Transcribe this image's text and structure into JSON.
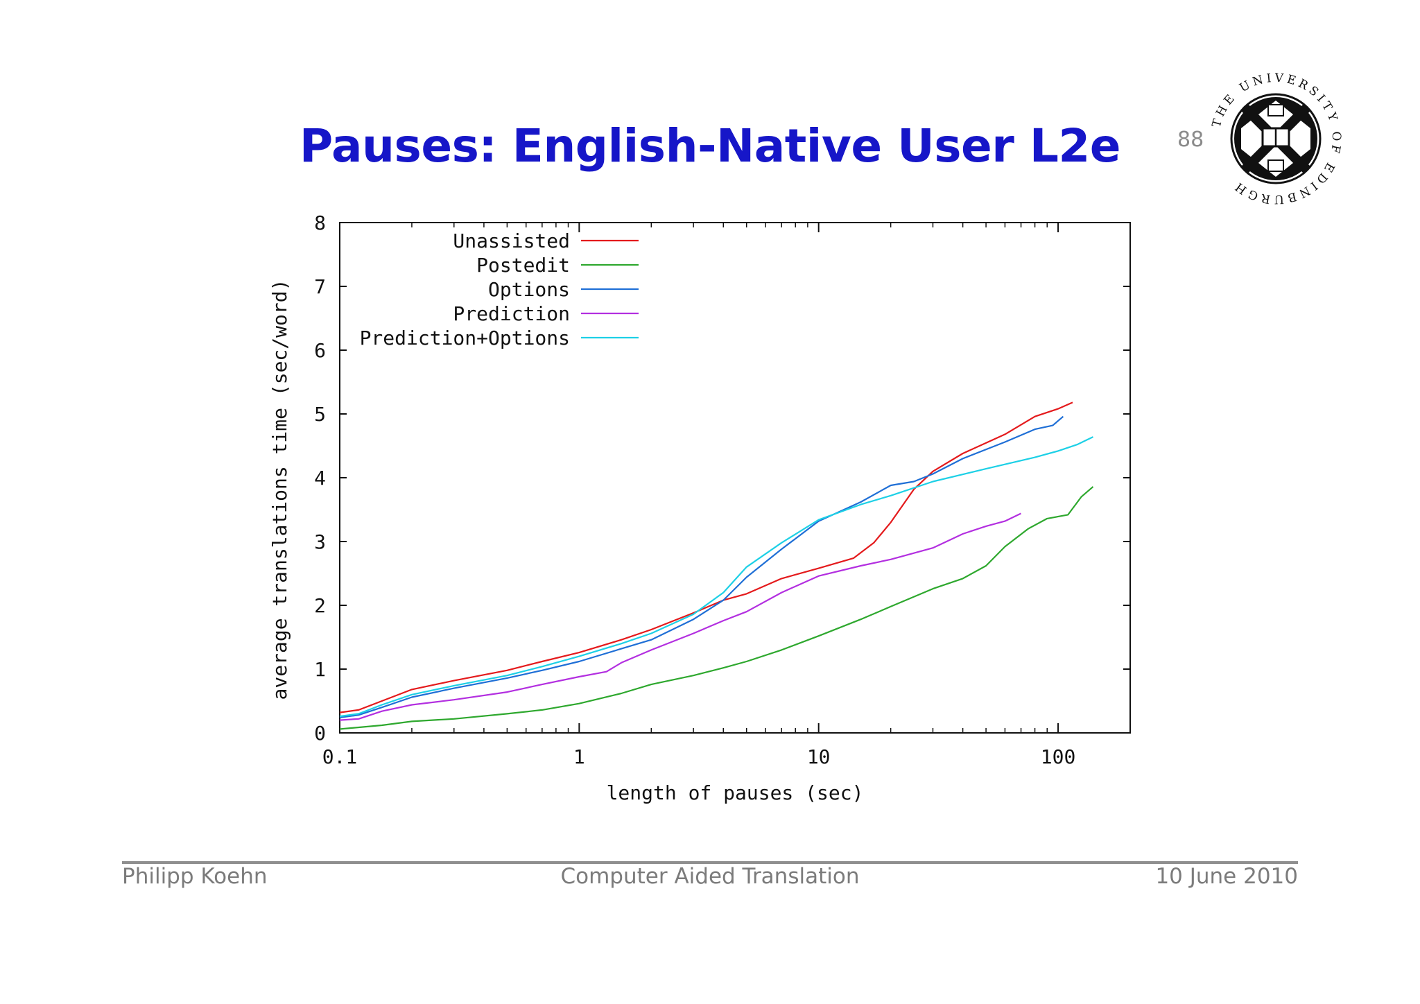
{
  "slide": {
    "title": "Pauses: English-Native User L2e",
    "page_number": "88",
    "logo_text": "THE UNIVERSITY OF EDINBURGH"
  },
  "footer": {
    "author": "Philipp Koehn",
    "course": "Computer Aided Translation",
    "date": "10 June 2010"
  },
  "chart_data": {
    "type": "line",
    "xlabel": "length of pauses (sec)",
    "ylabel": "average translations time (sec/word)",
    "x_scale": "log",
    "xlim": [
      0.1,
      200
    ],
    "ylim": [
      0,
      8
    ],
    "x_ticks": [
      0.1,
      1,
      10,
      100
    ],
    "x_tick_labels": [
      "0.1",
      "1",
      "10",
      "100"
    ],
    "y_ticks": [
      0,
      1,
      2,
      3,
      4,
      5,
      6,
      7,
      8
    ],
    "y_tick_labels": [
      "0",
      "1",
      "2",
      "3",
      "4",
      "5",
      "6",
      "7",
      "8"
    ],
    "grid": false,
    "legend_position": "top-left",
    "series": [
      {
        "name": "Unassisted",
        "color": "#e41a1c",
        "points": [
          [
            0.1,
            0.32
          ],
          [
            0.12,
            0.36
          ],
          [
            0.15,
            0.5
          ],
          [
            0.2,
            0.68
          ],
          [
            0.3,
            0.82
          ],
          [
            0.5,
            0.98
          ],
          [
            0.7,
            1.12
          ],
          [
            1.0,
            1.26
          ],
          [
            1.5,
            1.46
          ],
          [
            2.0,
            1.62
          ],
          [
            3.0,
            1.88
          ],
          [
            4.0,
            2.08
          ],
          [
            5.0,
            2.18
          ],
          [
            7.0,
            2.42
          ],
          [
            10.0,
            2.58
          ],
          [
            14.0,
            2.74
          ],
          [
            17.0,
            2.98
          ],
          [
            20.0,
            3.3
          ],
          [
            25.0,
            3.82
          ],
          [
            30.0,
            4.1
          ],
          [
            40.0,
            4.38
          ],
          [
            60.0,
            4.68
          ],
          [
            80.0,
            4.96
          ],
          [
            100.0,
            5.08
          ],
          [
            115.0,
            5.18
          ]
        ]
      },
      {
        "name": "Postedit",
        "color": "#2ea82e",
        "points": [
          [
            0.1,
            0.06
          ],
          [
            0.15,
            0.12
          ],
          [
            0.2,
            0.18
          ],
          [
            0.3,
            0.22
          ],
          [
            0.5,
            0.3
          ],
          [
            0.7,
            0.36
          ],
          [
            1.0,
            0.46
          ],
          [
            1.5,
            0.62
          ],
          [
            2.0,
            0.76
          ],
          [
            3.0,
            0.9
          ],
          [
            4.0,
            1.02
          ],
          [
            5.0,
            1.12
          ],
          [
            7.0,
            1.3
          ],
          [
            10.0,
            1.52
          ],
          [
            15.0,
            1.78
          ],
          [
            20.0,
            1.98
          ],
          [
            30.0,
            2.26
          ],
          [
            40.0,
            2.42
          ],
          [
            50.0,
            2.62
          ],
          [
            60.0,
            2.92
          ],
          [
            75.0,
            3.2
          ],
          [
            90.0,
            3.36
          ],
          [
            110.0,
            3.42
          ],
          [
            125.0,
            3.7
          ],
          [
            140.0,
            3.86
          ]
        ]
      },
      {
        "name": "Options",
        "color": "#1f6fd6",
        "points": [
          [
            0.1,
            0.24
          ],
          [
            0.12,
            0.28
          ],
          [
            0.15,
            0.4
          ],
          [
            0.2,
            0.56
          ],
          [
            0.3,
            0.7
          ],
          [
            0.5,
            0.86
          ],
          [
            0.7,
            0.98
          ],
          [
            1.0,
            1.12
          ],
          [
            1.5,
            1.32
          ],
          [
            2.0,
            1.46
          ],
          [
            3.0,
            1.78
          ],
          [
            4.0,
            2.08
          ],
          [
            5.0,
            2.44
          ],
          [
            7.0,
            2.88
          ],
          [
            10.0,
            3.32
          ],
          [
            15.0,
            3.62
          ],
          [
            20.0,
            3.88
          ],
          [
            25.0,
            3.94
          ],
          [
            30.0,
            4.06
          ],
          [
            40.0,
            4.3
          ],
          [
            60.0,
            4.56
          ],
          [
            80.0,
            4.76
          ],
          [
            95.0,
            4.82
          ],
          [
            105.0,
            4.96
          ]
        ]
      },
      {
        "name": "Prediction",
        "color": "#b32fe0",
        "points": [
          [
            0.1,
            0.2
          ],
          [
            0.12,
            0.22
          ],
          [
            0.15,
            0.34
          ],
          [
            0.2,
            0.44
          ],
          [
            0.3,
            0.52
          ],
          [
            0.5,
            0.64
          ],
          [
            0.7,
            0.76
          ],
          [
            1.0,
            0.88
          ],
          [
            1.3,
            0.96
          ],
          [
            1.5,
            1.1
          ],
          [
            2.0,
            1.3
          ],
          [
            3.0,
            1.56
          ],
          [
            4.0,
            1.76
          ],
          [
            5.0,
            1.9
          ],
          [
            7.0,
            2.2
          ],
          [
            10.0,
            2.46
          ],
          [
            15.0,
            2.62
          ],
          [
            20.0,
            2.72
          ],
          [
            30.0,
            2.9
          ],
          [
            40.0,
            3.12
          ],
          [
            50.0,
            3.24
          ],
          [
            60.0,
            3.32
          ],
          [
            70.0,
            3.44
          ]
        ]
      },
      {
        "name": "Prediction+Options",
        "color": "#1dd0e6",
        "points": [
          [
            0.1,
            0.26
          ],
          [
            0.12,
            0.3
          ],
          [
            0.15,
            0.44
          ],
          [
            0.2,
            0.6
          ],
          [
            0.3,
            0.74
          ],
          [
            0.5,
            0.9
          ],
          [
            0.7,
            1.04
          ],
          [
            1.0,
            1.2
          ],
          [
            1.5,
            1.4
          ],
          [
            2.0,
            1.56
          ],
          [
            3.0,
            1.86
          ],
          [
            4.0,
            2.2
          ],
          [
            5.0,
            2.6
          ],
          [
            7.0,
            2.98
          ],
          [
            10.0,
            3.34
          ],
          [
            15.0,
            3.58
          ],
          [
            20.0,
            3.72
          ],
          [
            30.0,
            3.94
          ],
          [
            50.0,
            4.14
          ],
          [
            80.0,
            4.32
          ],
          [
            100.0,
            4.42
          ],
          [
            120.0,
            4.52
          ],
          [
            140.0,
            4.64
          ]
        ]
      }
    ]
  }
}
